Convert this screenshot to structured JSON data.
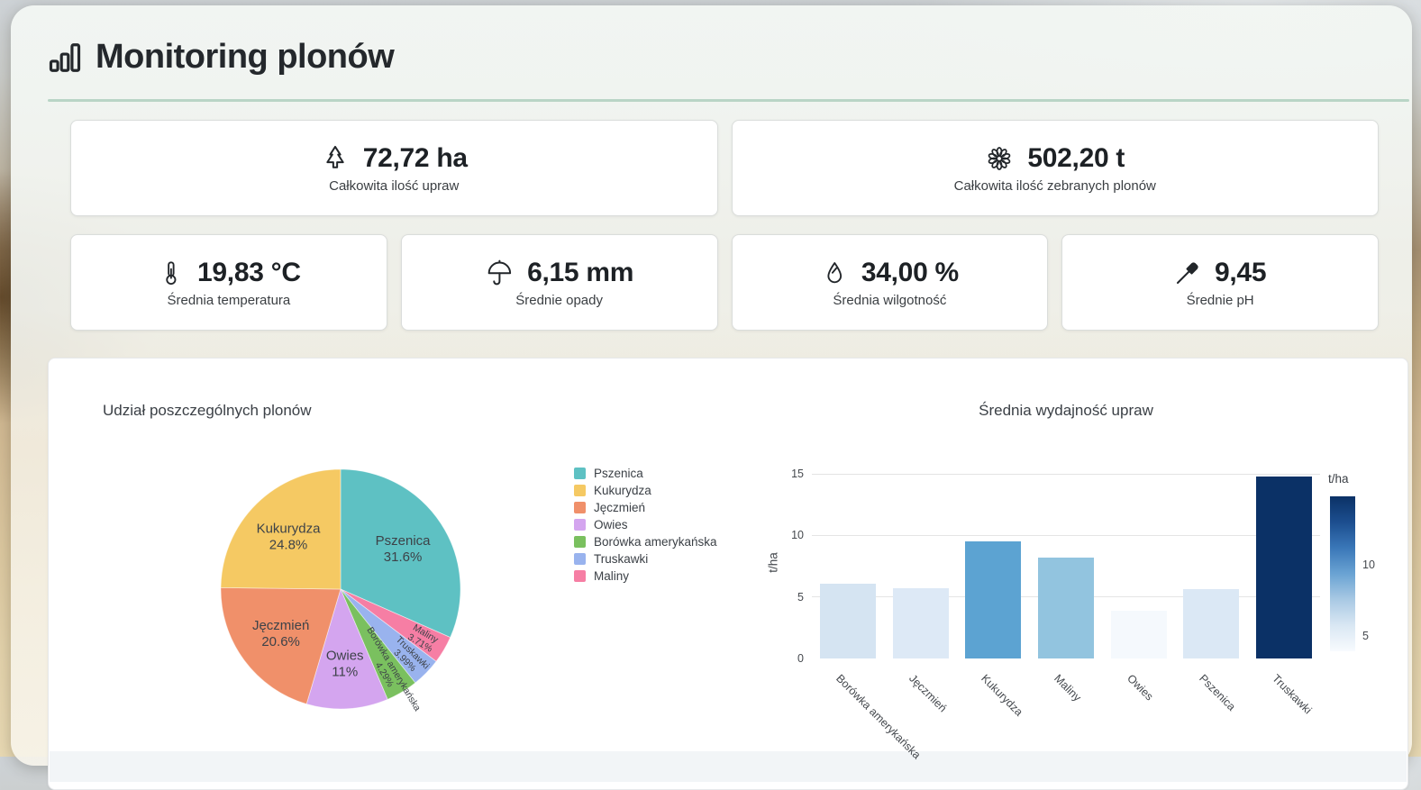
{
  "header": {
    "title": "Monitoring plonów",
    "icon": "bar-chart-icon"
  },
  "kpis": {
    "items": [
      {
        "icon": "tree-icon",
        "value": "72,72 ha",
        "label": "Całkowita ilość upraw"
      },
      {
        "icon": "flower-icon",
        "value": "502,20 t",
        "label": "Całkowita ilość zebranych plonów"
      },
      {
        "icon": "thermometer-icon",
        "value": "19,83 °C",
        "label": "Średnia temperatura"
      },
      {
        "icon": "umbrella-icon",
        "value": "6,15 mm",
        "label": "Średnie opady"
      },
      {
        "icon": "droplet-icon",
        "value": "34,00 %",
        "label": "Średnia wilgotność"
      },
      {
        "icon": "dropper-icon",
        "value": "9,45",
        "label": "Średnie pH"
      }
    ]
  },
  "chart_data": [
    {
      "type": "pie",
      "title": "Udział poszczególnych plonów",
      "legend_position": "right",
      "slices": [
        {
          "name": "Pszenica",
          "pct": 31.6,
          "pct_label": "31.6%",
          "color": "#5ec1c3"
        },
        {
          "name": "Kukurydza",
          "pct": 24.8,
          "pct_label": "24.8%",
          "color": "#f5c963"
        },
        {
          "name": "Jęczmień",
          "pct": 20.6,
          "pct_label": "20.6%",
          "color": "#f0906a"
        },
        {
          "name": "Owies",
          "pct": 11,
          "pct_label": "11%",
          "color": "#d4a5ef"
        },
        {
          "name": "Borówka amerykańska",
          "pct": 4.29,
          "pct_label": "4.29%",
          "color": "#7ac05f"
        },
        {
          "name": "Truskawki",
          "pct": 3.99,
          "pct_label": "3.99%",
          "color": "#99b3ee"
        },
        {
          "name": "Maliny",
          "pct": 3.71,
          "pct_label": "3.71%",
          "color": "#f67ea4"
        }
      ],
      "draw_order_clockwise_from_top": [
        0,
        6,
        5,
        4,
        3,
        2,
        1
      ]
    },
    {
      "type": "bar",
      "title": "Średnia wydajność upraw",
      "categories": [
        "Borówka amerykańska",
        "Jęczmień",
        "Kukurydza",
        "Maliny",
        "Owies",
        "Pszenica",
        "Truskawki"
      ],
      "values": [
        6.1,
        5.7,
        9.5,
        8.2,
        3.9,
        5.6,
        14.8
      ],
      "bar_colors": [
        "#d5e4f2",
        "#dde9f6",
        "#5ca3d2",
        "#92c4df",
        "#f5f9fd",
        "#dbe8f5",
        "#0b3166"
      ],
      "xlabel": "",
      "ylabel": "t/ha",
      "yticks": [
        0,
        5,
        10,
        15
      ],
      "ylim": [
        0,
        15.6
      ],
      "grid": true,
      "colorbar": {
        "title": "t/ha",
        "min": 3.9,
        "max": 14.8,
        "ticks": [
          10,
          5
        ],
        "gradient": [
          "#0b3166",
          "#1c4e8f",
          "#3a77b8",
          "#6aa3d3",
          "#a9c9e4",
          "#d9e7f3",
          "#f8fbfe"
        ]
      }
    }
  ]
}
